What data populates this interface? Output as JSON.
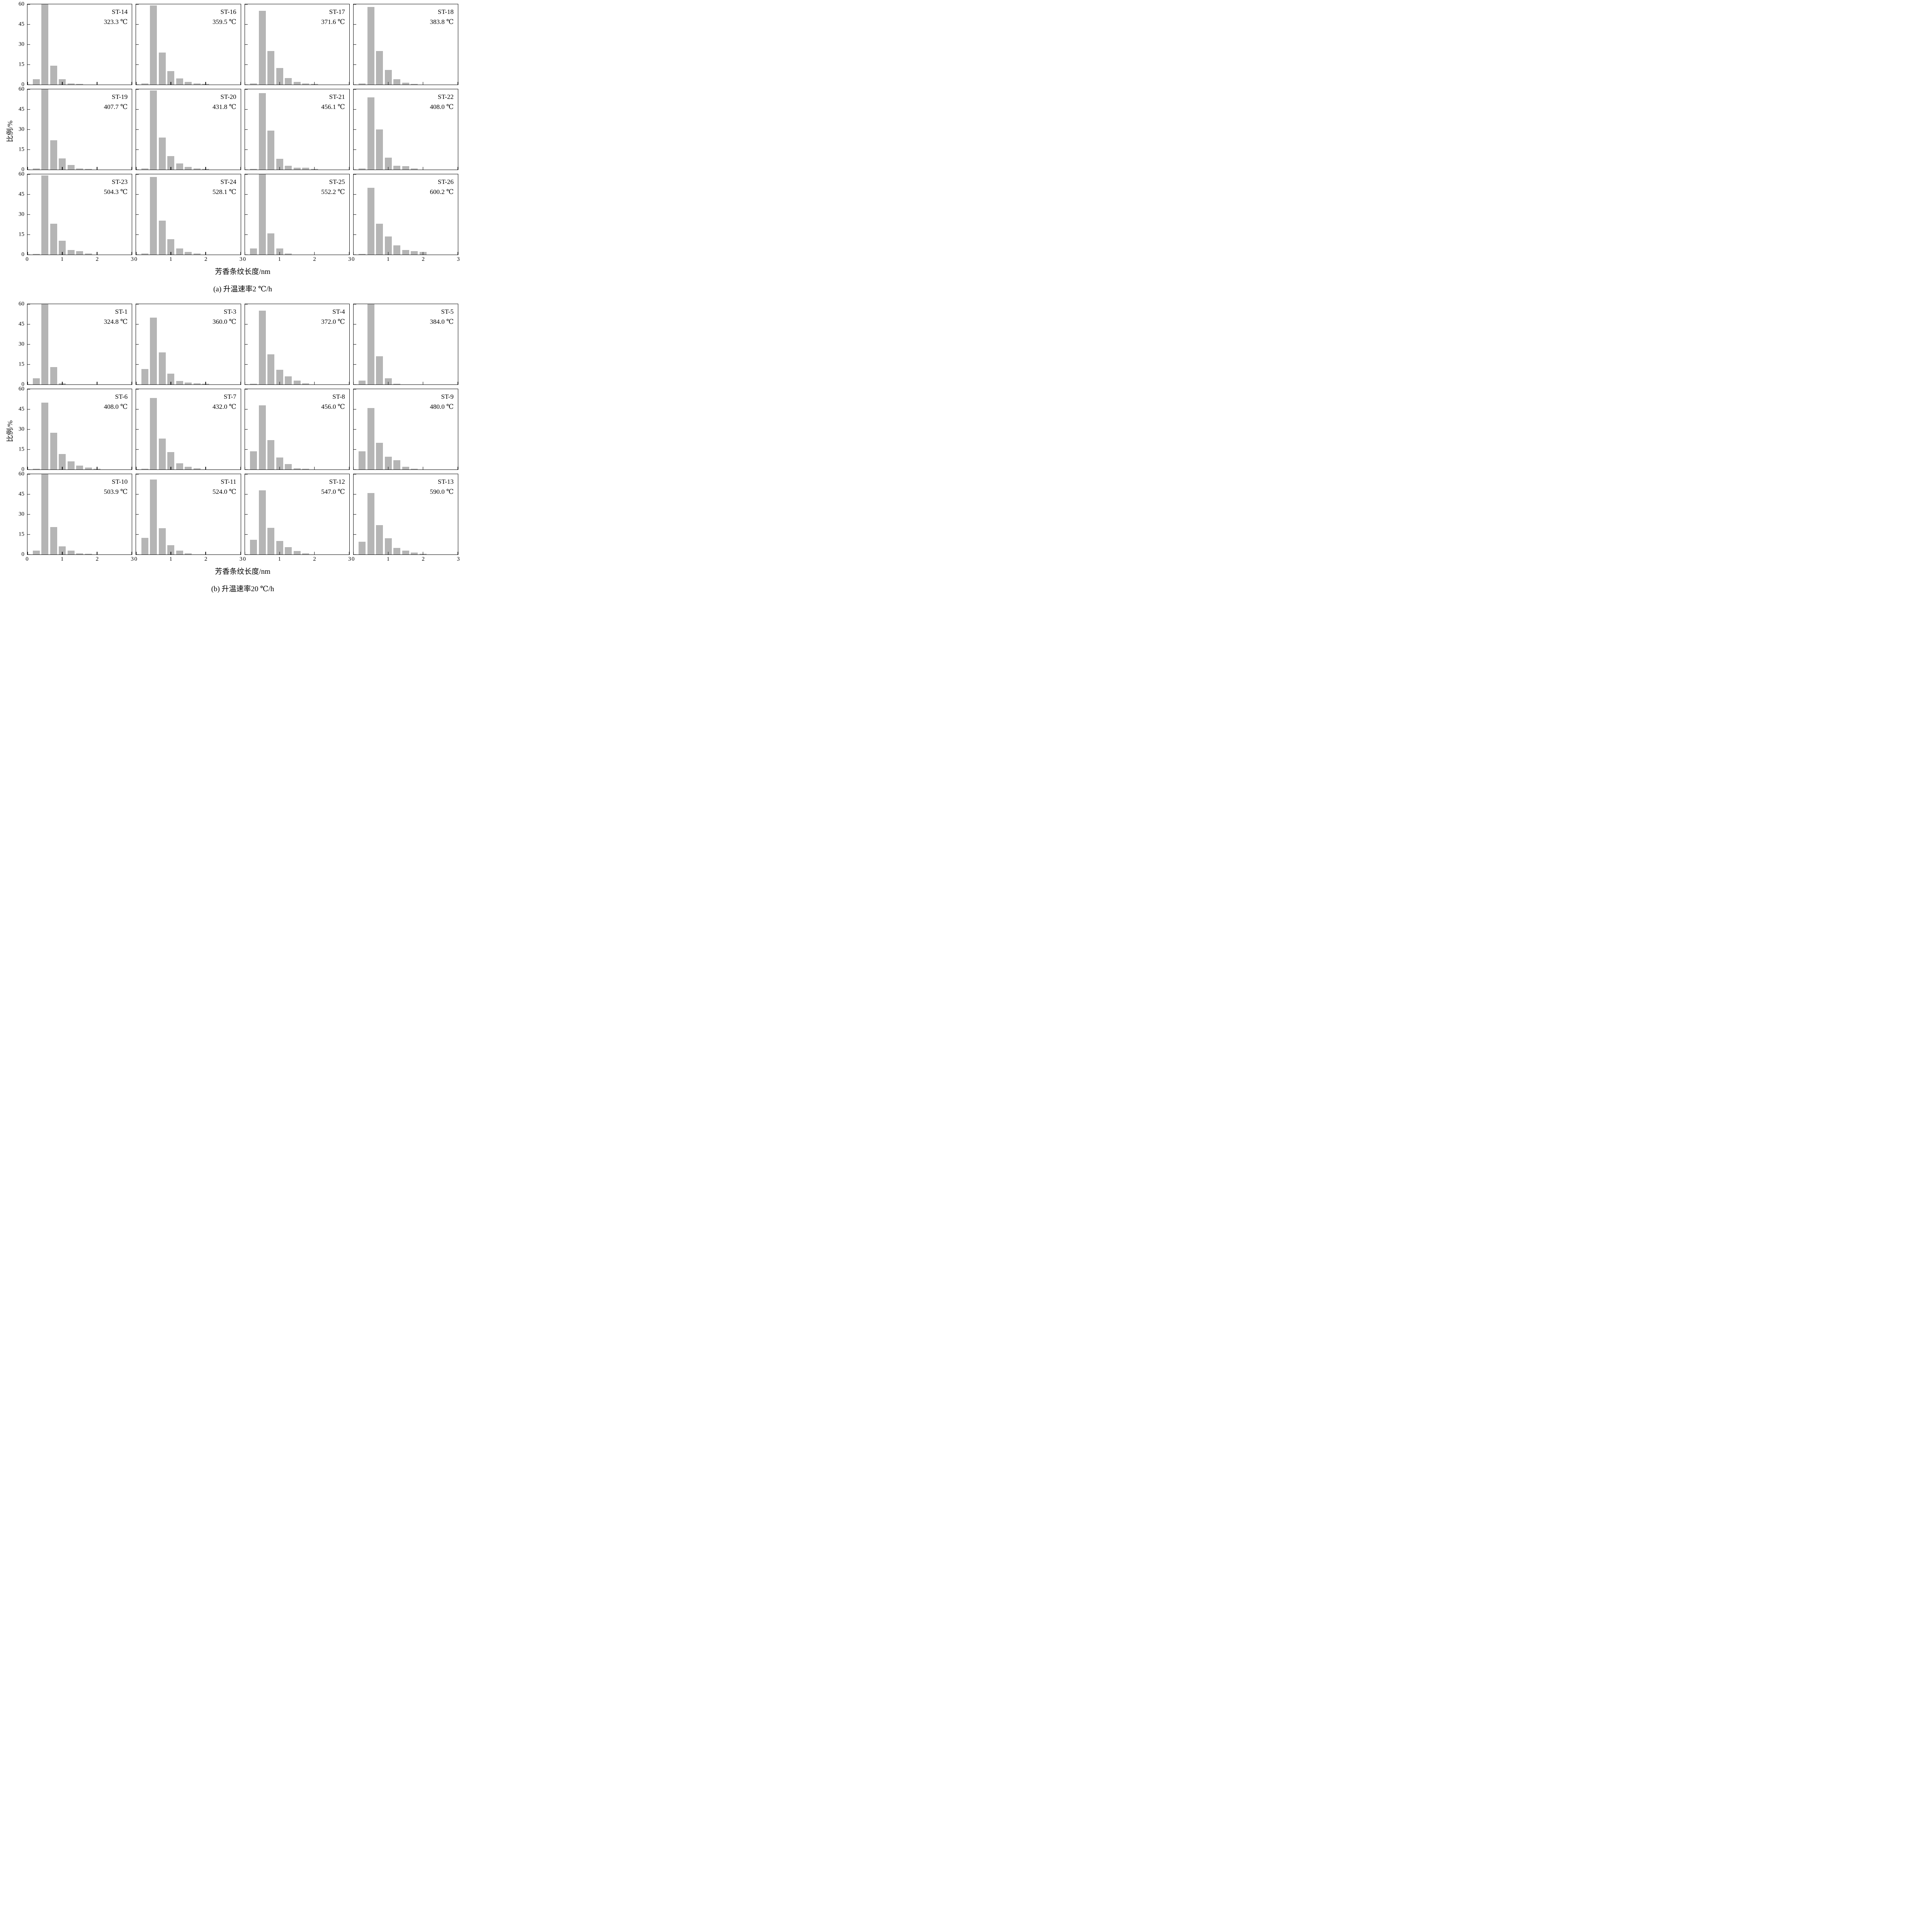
{
  "colors": {
    "bar": "#b5b5b5",
    "axis": "#000000",
    "background": "#ffffff"
  },
  "axis": {
    "ylabel": "比例/%",
    "xlabel": "芳香条纹长度/nm",
    "yticks": [
      0,
      15,
      30,
      45,
      60
    ],
    "xticks": [
      0,
      1,
      2,
      3
    ],
    "ylim": [
      0,
      60
    ],
    "xlim": [
      0,
      3
    ],
    "bin_centers": [
      0.25,
      0.5,
      0.75,
      1.0,
      1.25,
      1.5,
      1.75,
      2.0,
      2.25
    ],
    "bar_width": 0.2
  },
  "chart_data": {
    "type": "bar",
    "title": "",
    "xlabel": "芳香条纹长度/nm",
    "ylabel": "比例/%",
    "xlim": [
      0,
      3
    ],
    "ylim": [
      0,
      60
    ],
    "bin_centers": [
      0.25,
      0.5,
      0.75,
      1.0,
      1.25,
      1.5,
      1.75,
      2.0,
      2.25
    ],
    "panels": [
      {
        "id": "a",
        "caption": "(a) 升温速率2 ℃/h",
        "subplots": [
          {
            "label": "ST-14",
            "temperature": "323.3 ℃",
            "values": [
              4,
              63,
              14,
              4,
              1,
              0.5,
              0,
              0,
              0
            ]
          },
          {
            "label": "ST-16",
            "temperature": "359.5 ℃",
            "values": [
              1,
              59,
              24,
              10,
              4.5,
              2,
              1,
              0.5,
              0
            ]
          },
          {
            "label": "ST-17",
            "temperature": "371.6 ℃",
            "values": [
              1,
              55,
              25,
              12.5,
              5,
              2,
              1,
              0.5,
              0
            ]
          },
          {
            "label": "ST-18",
            "temperature": "383.8 ℃",
            "values": [
              1,
              58,
              25,
              11,
              4,
              1.5,
              0.5,
              0,
              0
            ]
          },
          {
            "label": "ST-19",
            "temperature": "407.7 ℃",
            "values": [
              1,
              62,
              22,
              8.5,
              3.5,
              1,
              0.5,
              0,
              0
            ]
          },
          {
            "label": "ST-20",
            "temperature": "431.8 ℃",
            "values": [
              1,
              59,
              24,
              10,
              4.5,
              2,
              1,
              0.5,
              0
            ]
          },
          {
            "label": "ST-21",
            "temperature": "456.1 ℃",
            "values": [
              0.5,
              57,
              29,
              8,
              3,
              1.5,
              1.5,
              0.5,
              0
            ]
          },
          {
            "label": "ST-22",
            "temperature": "408.0 ℃",
            "values": [
              1,
              54,
              30,
              9,
              3,
              2.5,
              1,
              0,
              0
            ]
          },
          {
            "label": "ST-23",
            "temperature": "504.3 ℃",
            "values": [
              0.5,
              59,
              23,
              10.5,
              3.5,
              2.5,
              1,
              0,
              0
            ]
          },
          {
            "label": "ST-24",
            "temperature": "528.1 ℃",
            "values": [
              1,
              58,
              25.5,
              11.5,
              4.5,
              2,
              1,
              0,
              0
            ]
          },
          {
            "label": "ST-25",
            "temperature": "552.2 ℃",
            "values": [
              4.5,
              63,
              16,
              4.5,
              1,
              0,
              0,
              0,
              0
            ]
          },
          {
            "label": "ST-26",
            "temperature": "600.2 ℃",
            "values": [
              0.5,
              50,
              23,
              13.5,
              7,
              3.5,
              2.5,
              2,
              0
            ]
          }
        ]
      },
      {
        "id": "b",
        "caption": "(b) 升温速率20 ℃/h",
        "subplots": [
          {
            "label": "ST-1",
            "temperature": "324.8 ℃",
            "values": [
              4.5,
              63,
              13,
              1,
              0,
              0,
              0,
              0,
              0
            ]
          },
          {
            "label": "ST-3",
            "temperature": "360.0 ℃",
            "values": [
              11.5,
              50,
              24,
              8,
              2.5,
              1.5,
              1,
              0.5,
              0
            ]
          },
          {
            "label": "ST-4",
            "temperature": "372.0 ℃",
            "values": [
              0.5,
              55,
              22.5,
              11,
              6,
              3,
              1,
              0,
              0
            ]
          },
          {
            "label": "ST-5",
            "temperature": "384.0 ℃",
            "values": [
              3,
              63,
              21,
              4.5,
              0.5,
              0,
              0,
              0,
              0
            ]
          },
          {
            "label": "ST-6",
            "temperature": "408.0 ℃",
            "values": [
              0.5,
              50,
              27.5,
              11.5,
              6,
              3,
              1.5,
              0.5,
              0
            ]
          },
          {
            "label": "ST-7",
            "temperature": "432.0 ℃",
            "values": [
              0.5,
              53.5,
              23,
              13,
              4.5,
              2,
              1,
              0,
              0
            ]
          },
          {
            "label": "ST-8",
            "temperature": "456.0 ℃",
            "values": [
              13.5,
              48,
              22,
              9,
              4,
              1,
              0.5,
              0,
              0
            ]
          },
          {
            "label": "ST-9",
            "temperature": "480.0 ℃",
            "values": [
              13.5,
              46,
              20,
              9.5,
              7,
              2,
              0.5,
              0,
              0
            ]
          },
          {
            "label": "ST-10",
            "temperature": "503.9 ℃",
            "values": [
              3,
              62,
              20.5,
              6,
              3,
              1,
              0.5,
              0,
              0
            ]
          },
          {
            "label": "ST-11",
            "temperature": "524.0 ℃",
            "values": [
              12.5,
              56,
              19.5,
              7,
              3,
              1,
              0,
              0,
              0
            ]
          },
          {
            "label": "ST-12",
            "temperature": "547.0 ℃",
            "values": [
              11,
              48,
              20,
              10,
              5.5,
              2.5,
              1,
              0,
              0
            ]
          },
          {
            "label": "ST-13",
            "temperature": "590.0 ℃",
            "values": [
              9.5,
              46,
              22,
              12,
              5,
              3,
              1.5,
              0.5,
              0
            ]
          }
        ]
      }
    ]
  }
}
